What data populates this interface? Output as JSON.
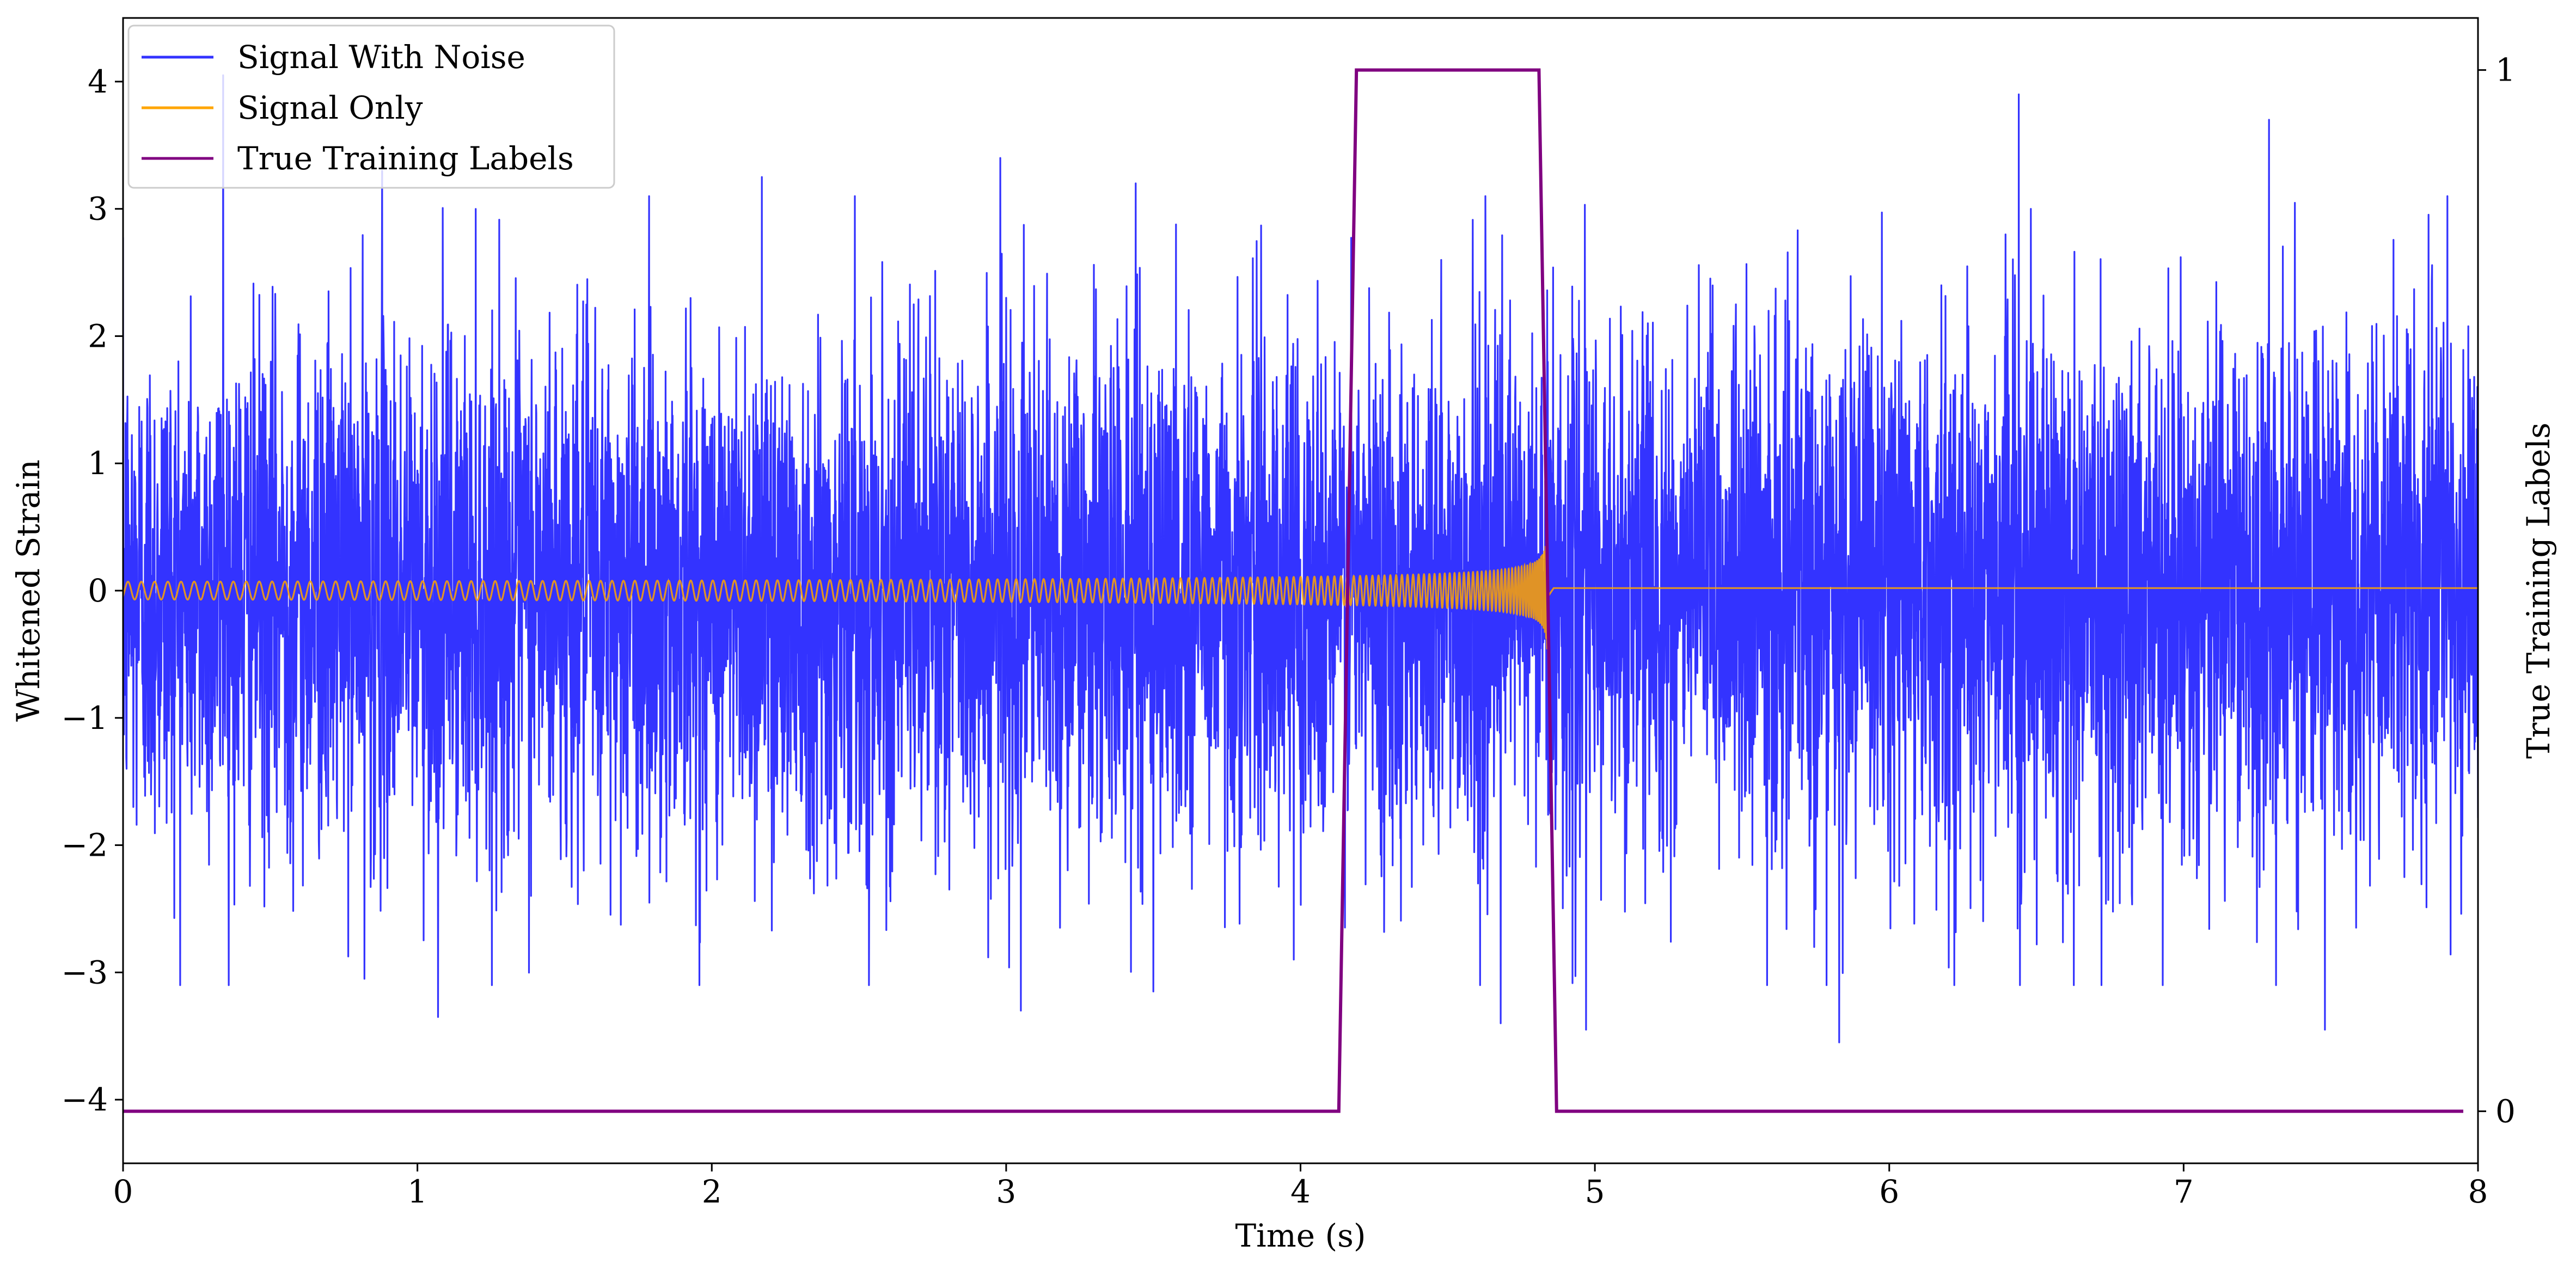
{
  "chart_data": {
    "type": "line",
    "xlabel": "Time (s)",
    "ylabel": "Whitened Strain",
    "ylabel_right": "True Training Labels",
    "xlim": [
      0,
      8
    ],
    "ylim": [
      -4.5,
      4.5
    ],
    "ylim_right": [
      -0.05,
      1.05
    ],
    "x_ticks": [
      0,
      1,
      2,
      3,
      4,
      5,
      6,
      7,
      8
    ],
    "y_ticks": [
      {
        "value": -4,
        "label": "−4"
      },
      {
        "value": -3,
        "label": "−3"
      },
      {
        "value": -2,
        "label": "−2"
      },
      {
        "value": -1,
        "label": "−1"
      },
      {
        "value": 0,
        "label": "0"
      },
      {
        "value": 1,
        "label": "1"
      },
      {
        "value": 2,
        "label": "2"
      },
      {
        "value": 3,
        "label": "3"
      },
      {
        "value": 4,
        "label": "4"
      }
    ],
    "y_ticks_right": [
      {
        "value": 0,
        "label": "0"
      },
      {
        "value": 1,
        "label": "1"
      }
    ],
    "grid": false,
    "legend_position": "top-left",
    "series": [
      {
        "name": "Signal With Noise",
        "axis": "left",
        "color": "#3333ff",
        "description_data": {
          "x_range": [
            0,
            8
          ],
          "noise_sigma": 1.0,
          "typical_range": [
            -3.4,
            4.0
          ],
          "peaks": [
            {
              "x": 0.34,
              "y": 4.05
            },
            {
              "x": 0.88,
              "y": 3.3
            },
            {
              "x": 2.17,
              "y": 3.25
            },
            {
              "x": 2.98,
              "y": 3.4
            },
            {
              "x": 3.44,
              "y": 3.2
            },
            {
              "x": 6.44,
              "y": 3.9
            },
            {
              "x": 7.29,
              "y": 3.7
            },
            {
              "x": 0.82,
              "y": -3.05
            },
            {
              "x": 1.07,
              "y": -3.35
            },
            {
              "x": 3.05,
              "y": -3.3
            },
            {
              "x": 3.5,
              "y": -3.15
            },
            {
              "x": 4.68,
              "y": -3.4
            },
            {
              "x": 4.97,
              "y": -3.45
            },
            {
              "x": 5.83,
              "y": -3.55
            },
            {
              "x": 7.48,
              "y": -3.45
            }
          ]
        }
      },
      {
        "name": "Signal Only",
        "axis": "left",
        "color": "#ffa500",
        "description_data": {
          "start_x": 0,
          "merger_x": 4.84,
          "start_amplitude": 0.07,
          "peak_amplitude": 0.72,
          "start_frequency_hz": 22,
          "value_after_merger": 0.02
        }
      },
      {
        "name": "True Training Labels",
        "axis": "right",
        "color": "#800080",
        "points": [
          [
            0.0,
            0
          ],
          [
            4.13,
            0
          ],
          [
            4.19,
            1
          ],
          [
            4.81,
            1
          ],
          [
            4.87,
            0
          ],
          [
            7.95,
            0
          ]
        ]
      }
    ]
  }
}
